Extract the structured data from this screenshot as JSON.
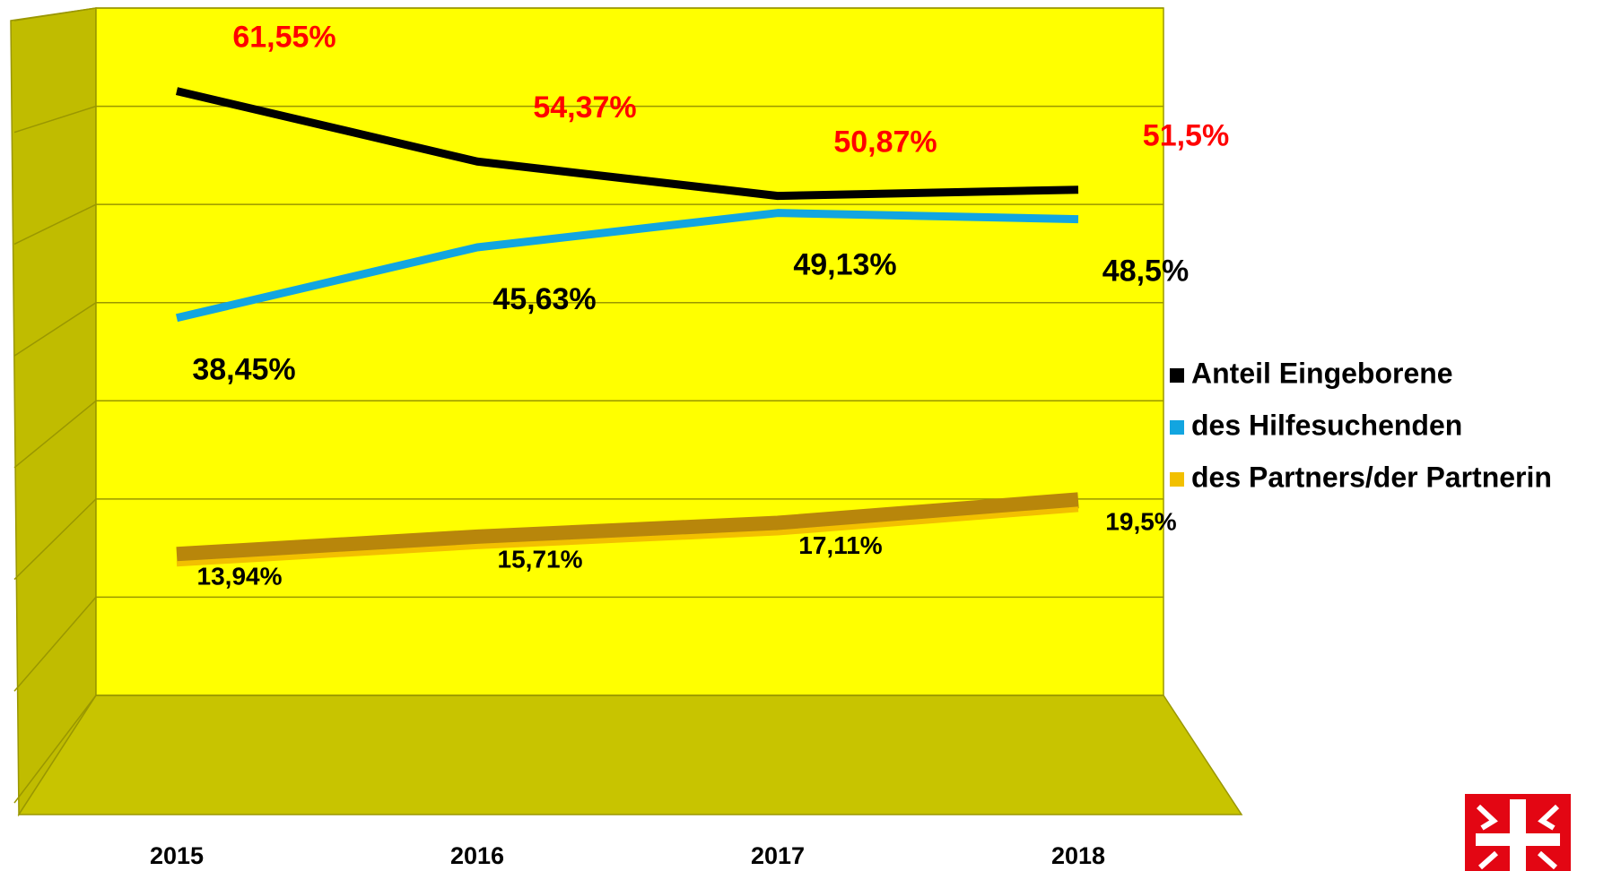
{
  "chart_data": {
    "type": "line",
    "categories": [
      "2015",
      "2016",
      "2017",
      "2018"
    ],
    "series": [
      {
        "name": "Anteil Eingeborene",
        "color": "#000000",
        "label_color": "#ff0000",
        "values": [
          61.55,
          54.37,
          50.87,
          51.5
        ],
        "value_labels": [
          "61,55%",
          "54,37%",
          "50,87%",
          "51,5%"
        ]
      },
      {
        "name": "des Hilfesuchenden",
        "color": "#12a5e0",
        "label_color": "#000000",
        "values": [
          38.45,
          45.63,
          49.13,
          48.5
        ],
        "value_labels": [
          "38,45%",
          "45,63%",
          "49,13%",
          "48,5%"
        ]
      },
      {
        "name": "des Partners/der Partnerin",
        "color": "#f2c000",
        "label_color": "#000000",
        "values": [
          13.94,
          15.71,
          17.11,
          19.5
        ],
        "value_labels": [
          "13,94%",
          "15,71%",
          "17,11%",
          "19,5%"
        ]
      }
    ],
    "ylim": [
      0,
      70
    ],
    "yticks": [
      0,
      10,
      20,
      30,
      40,
      50,
      60,
      70
    ],
    "grid": true
  }
}
